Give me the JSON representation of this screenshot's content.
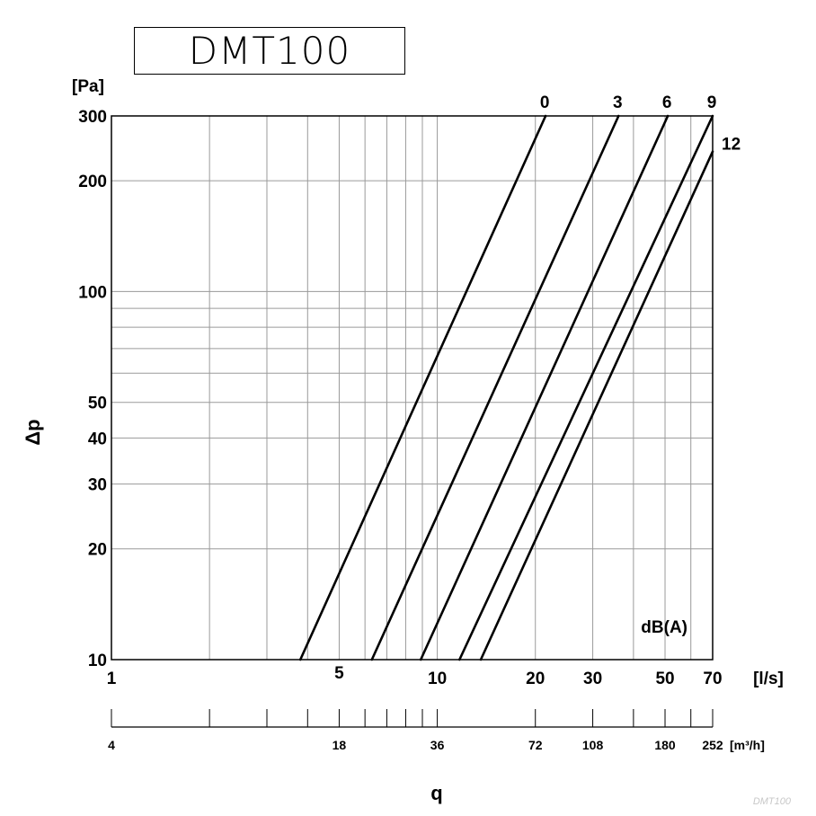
{
  "title": "DMT100",
  "watermark": "DMT100",
  "chart_data": {
    "type": "line",
    "x_scale": "log",
    "y_scale": "log",
    "xlim": [
      1,
      70
    ],
    "ylim": [
      10,
      300
    ],
    "x_unit": "[l/s]",
    "y_unit": "[Pa]",
    "xlabel": "q",
    "ylabel": "Δp",
    "x_ticks": [
      1,
      5,
      10,
      20,
      30,
      50,
      70
    ],
    "x_tick_labels": [
      "1",
      "5",
      "10",
      "20",
      "30",
      "50",
      "70"
    ],
    "x_minor_grid": [
      2,
      3,
      4,
      6,
      7,
      8,
      9,
      40,
      60
    ],
    "y_ticks": [
      10,
      20,
      30,
      40,
      50,
      100,
      200,
      300
    ],
    "y_tick_labels": [
      "10",
      "20",
      "30",
      "40",
      "50",
      "100",
      "200",
      "300"
    ],
    "y_minor_grid": [
      60,
      70,
      80,
      90
    ],
    "secondary_x_axis": {
      "unit": "[m³/h]",
      "ticks_ls": [
        1,
        2,
        3,
        4,
        5,
        6,
        7,
        8,
        9,
        10,
        20,
        30,
        40,
        50,
        60,
        70
      ],
      "labels": [
        {
          "at_ls": 1,
          "text": "4"
        },
        {
          "at_ls": 5,
          "text": "18"
        },
        {
          "at_ls": 10,
          "text": "36"
        },
        {
          "at_ls": 20,
          "text": "72"
        },
        {
          "at_ls": 30,
          "text": "108"
        },
        {
          "at_ls": 50,
          "text": "180"
        },
        {
          "at_ls": 70,
          "text": "252"
        }
      ]
    },
    "series_label_title": "dB(A)",
    "series": [
      {
        "name": "0",
        "x": [
          3.8,
          21.5
        ],
        "y": [
          10,
          300
        ]
      },
      {
        "name": "3",
        "x": [
          6.3,
          36.0
        ],
        "y": [
          10,
          300
        ]
      },
      {
        "name": "6",
        "x": [
          8.9,
          51.0
        ],
        "y": [
          10,
          300
        ]
      },
      {
        "name": "9",
        "x": [
          11.7,
          70.0
        ],
        "y": [
          10,
          300
        ]
      },
      {
        "name": "12",
        "x": [
          13.6,
          70.0
        ],
        "y": [
          10,
          240
        ]
      }
    ],
    "grid": true
  }
}
